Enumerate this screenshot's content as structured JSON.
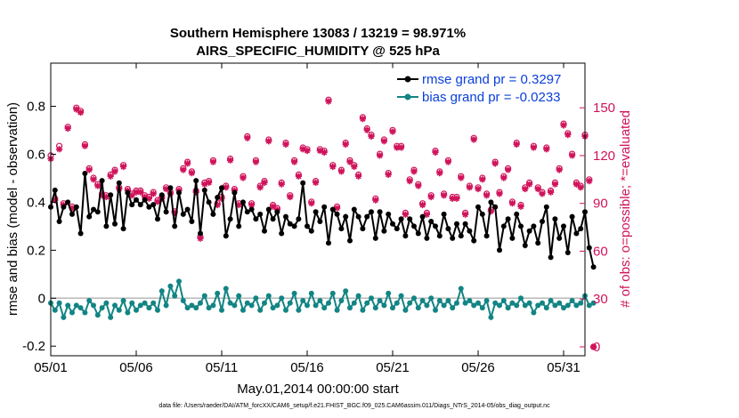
{
  "chart_data": {
    "type": "line",
    "title": "Southern Hemisphere 13083 / 13219 = 98.971%",
    "subtitle": "AIRS_SPECIFIC_HUMIDITY @ 525 hPa",
    "xlabel": "May.01,2014 00:00:00 start",
    "ylabel_left": "rmse and bias (model - observation)",
    "ylabel_right": "# of obs: o=possible; *=evaluated",
    "footnote": "data file: /Users/raeder/DAI/ATM_forcXX/CAM6_setup/f.e21.FHIST_BGC.f09_025.CAM6assim.011/Diags_NTrS_2014-05/obs_diag_output.nc",
    "x_ticks": [
      "05/01",
      "05/06",
      "05/11",
      "05/16",
      "05/21",
      "05/26",
      "05/31"
    ],
    "x_tick_days": [
      1,
      6,
      11,
      16,
      21,
      26,
      31
    ],
    "xlim": [
      1,
      32.25
    ],
    "ylim_left": [
      -0.24,
      0.98
    ],
    "ylim_right": [
      -5.6,
      178
    ],
    "yticks_left": [
      "-0.2",
      "0",
      "0.2",
      "0.4",
      "0.6",
      "0.8"
    ],
    "yticks_left_values": [
      -0.2,
      0,
      0.2,
      0.4,
      0.6,
      0.8
    ],
    "yticks_right": [
      "0",
      "30",
      "60",
      "90",
      "120",
      "150"
    ],
    "yticks_right_values": [
      0,
      30,
      60,
      90,
      120,
      150
    ],
    "legend_placement": "top-right",
    "grid": false,
    "series": [
      {
        "name": "rmse grand pr = 0.3297",
        "axis": "left",
        "color": "#000000",
        "values": [
          0.38,
          0.45,
          0.32,
          0.38,
          0.4,
          0.35,
          0.38,
          0.27,
          0.52,
          0.34,
          0.37,
          0.36,
          0.49,
          0.3,
          0.43,
          0.31,
          0.48,
          0.29,
          0.44,
          0.39,
          0.41,
          0.39,
          0.41,
          0.38,
          0.39,
          0.33,
          0.43,
          0.36,
          0.46,
          0.3,
          0.44,
          0.35,
          0.37,
          0.32,
          0.49,
          0.27,
          0.45,
          0.4,
          0.35,
          0.42,
          0.46,
          0.26,
          0.33,
          0.44,
          0.3,
          0.4,
          0.36,
          0.37,
          0.33,
          0.35,
          0.28,
          0.37,
          0.33,
          0.36,
          0.27,
          0.34,
          0.31,
          0.3,
          0.33,
          0.48,
          0.3,
          0.28,
          0.36,
          0.32,
          0.38,
          0.23,
          0.37,
          0.35,
          0.29,
          0.34,
          0.24,
          0.37,
          0.34,
          0.29,
          0.34,
          0.36,
          0.25,
          0.36,
          0.28,
          0.35,
          0.31,
          0.29,
          0.33,
          0.26,
          0.33,
          0.3,
          0.27,
          0.34,
          0.25,
          0.32,
          0.3,
          0.26,
          0.35,
          0.29,
          0.25,
          0.31,
          0.26,
          0.31,
          0.28,
          0.24,
          0.38,
          0.35,
          0.26,
          0.4,
          0.38,
          0.2,
          0.3,
          0.33,
          0.25,
          0.35,
          0.3,
          0.22,
          0.28,
          0.3,
          0.23,
          0.32,
          0.38,
          0.17,
          0.33,
          0.25,
          0.3,
          0.19,
          0.34,
          0.27,
          0.29,
          0.36,
          0.21,
          0.13
        ],
        "marker": "filled-star"
      },
      {
        "name": "bias grand pr = -0.0233",
        "axis": "left",
        "color": "#138484",
        "values": [
          -0.02,
          -0.05,
          -0.02,
          -0.08,
          -0.03,
          -0.06,
          -0.03,
          -0.04,
          -0.06,
          -0.01,
          -0.03,
          -0.07,
          -0.04,
          -0.02,
          -0.08,
          -0.03,
          -0.05,
          -0.01,
          -0.06,
          -0.02,
          -0.05,
          -0.03,
          -0.02,
          -0.04,
          -0.02,
          -0.05,
          0.03,
          -0.03,
          0.05,
          0.01,
          0.07,
          -0.01,
          -0.04,
          -0.03,
          -0.04,
          -0.02,
          0.01,
          -0.04,
          -0.03,
          0.02,
          -0.05,
          0.04,
          -0.02,
          -0.03,
          0.01,
          -0.05,
          -0.02,
          -0.03,
          0.0,
          -0.05,
          -0.02,
          0.01,
          -0.04,
          -0.03,
          0.0,
          -0.05,
          -0.02,
          0.02,
          -0.05,
          -0.01,
          -0.03,
          0.02,
          -0.03,
          -0.01,
          -0.04,
          -0.02,
          0.02,
          -0.05,
          -0.01,
          0.03,
          -0.04,
          -0.02,
          0.01,
          -0.05,
          -0.02,
          0.0,
          -0.04,
          -0.01,
          -0.03,
          0.02,
          -0.04,
          -0.02,
          0.01,
          -0.05,
          -0.02,
          0.0,
          -0.04,
          -0.01,
          -0.03,
          0.0,
          -0.05,
          -0.01,
          -0.03,
          -0.01,
          -0.04,
          -0.02,
          0.04,
          -0.02,
          -0.01,
          -0.03,
          -0.02,
          -0.04,
          -0.01,
          -0.08,
          -0.02,
          -0.03,
          -0.01,
          -0.04,
          -0.02,
          -0.03,
          0.0,
          -0.03,
          -0.02,
          -0.06,
          -0.03,
          -0.02,
          -0.04,
          -0.01,
          -0.03,
          -0.02,
          -0.04,
          -0.03,
          -0.01,
          -0.03,
          -0.02,
          0.01,
          -0.03,
          -0.02
        ],
        "marker": "filled-circle"
      },
      {
        "name": "possible",
        "axis": "right",
        "color": "#d0135b",
        "marker": "open-circle",
        "values": [
          120,
          93,
          126,
          90,
          138,
          88,
          150,
          148,
          127,
          112,
          106,
          102,
          96,
          95,
          108,
          111,
          100,
          114,
          99,
          96,
          98,
          98,
          95,
          94,
          97,
          92,
          94,
          100,
          97,
          85,
          99,
          112,
          116,
          110,
          98,
          69,
          103,
          104,
          117,
          90,
          94,
          101,
          118,
          99,
          90,
          107,
          132,
          90,
          117,
          101,
          104,
          130,
          89,
          87,
          103,
          128,
          95,
          117,
          108,
          125,
          124,
          91,
          104,
          124,
          123,
          155,
          114,
          88,
          111,
          128,
          117,
          114,
          108,
          144,
          137,
          133,
          93,
          121,
          130,
          109,
          136,
          126,
          126,
          84,
          105,
          111,
          102,
          90,
          84,
          95,
          123,
          110,
          96,
          117,
          94,
          94,
          107,
          84,
          101,
          131,
          100,
          106,
          96,
          86,
          116,
          97,
          107,
          112,
          91,
          128,
          89,
          100,
          103,
          126,
          100,
          97,
          125,
          98,
          103,
          112,
          140,
          134,
          121,
          103,
          101,
          133,
          105,
          0
        ]
      },
      {
        "name": "evaluated",
        "axis": "right",
        "color": "#d0135b",
        "marker": "asterisk",
        "values": [
          118,
          92,
          124,
          89,
          137,
          87,
          149,
          147,
          126,
          111,
          105,
          101,
          95,
          94,
          107,
          110,
          99,
          113,
          98,
          95,
          97,
          97,
          94,
          93,
          96,
          91,
          93,
          99,
          96,
          84,
          98,
          111,
          115,
          109,
          97,
          68,
          102,
          103,
          116,
          89,
          93,
          100,
          117,
          98,
          89,
          106,
          131,
          89,
          116,
          100,
          103,
          129,
          88,
          86,
          102,
          127,
          94,
          116,
          107,
          124,
          123,
          90,
          103,
          123,
          122,
          154,
          113,
          87,
          110,
          127,
          116,
          113,
          107,
          143,
          136,
          132,
          92,
          120,
          129,
          108,
          135,
          125,
          125,
          83,
          104,
          110,
          101,
          89,
          83,
          94,
          122,
          109,
          95,
          116,
          93,
          93,
          106,
          83,
          100,
          130,
          99,
          105,
          95,
          85,
          115,
          96,
          106,
          111,
          90,
          127,
          88,
          99,
          102,
          125,
          99,
          96,
          124,
          97,
          102,
          111,
          139,
          133,
          120,
          102,
          100,
          132,
          104,
          0
        ]
      }
    ]
  }
}
